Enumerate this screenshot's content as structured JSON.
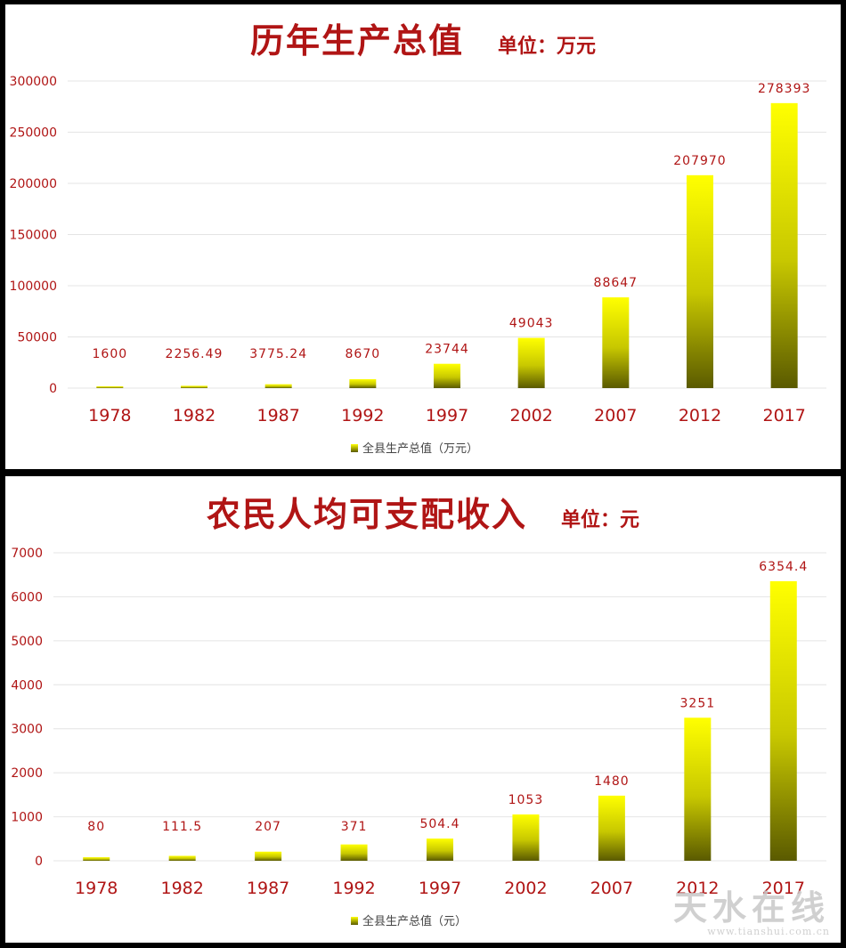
{
  "charts": [
    {
      "title": "历年生产总值",
      "unit_label": "单位：万元",
      "chart_data": {
        "type": "bar",
        "title": "历年生产总值",
        "categories": [
          "1978",
          "1982",
          "1987",
          "1992",
          "1997",
          "2002",
          "2007",
          "2012",
          "2017"
        ],
        "values": [
          1600,
          2256.49,
          3775.24,
          8670,
          23744,
          49043,
          88647,
          207970,
          278393
        ],
        "data_labels": [
          "1600",
          "2256.49",
          "3775.24",
          "8670",
          "23744",
          "49043",
          "88647",
          "207970",
          "278393"
        ],
        "series": [
          {
            "name": "全县生产总值（万元）",
            "values": [
              1600,
              2256.49,
              3775.24,
              8670,
              23744,
              49043,
              88647,
              207970,
              278393
            ]
          }
        ],
        "y_ticks": [
          "0",
          "50000",
          "100000",
          "150000",
          "200000",
          "250000",
          "300000"
        ],
        "ylim": [
          0,
          300000
        ],
        "grid": true,
        "legend": "bottom"
      }
    },
    {
      "title": "农民人均可支配收入",
      "unit_label": "单位：元",
      "chart_data": {
        "type": "bar",
        "title": "农民人均可支配收入",
        "categories": [
          "1978",
          "1982",
          "1987",
          "1992",
          "1997",
          "2002",
          "2007",
          "2012",
          "2017"
        ],
        "values": [
          80,
          111.5,
          207,
          371,
          504.4,
          1053,
          1480,
          3251,
          6354.4
        ],
        "data_labels": [
          "80",
          "111.5",
          "207",
          "371",
          "504.4",
          "1053",
          "1480",
          "3251",
          "6354.4"
        ],
        "series": [
          {
            "name": "全县生产总值（元）",
            "values": [
              80,
              111.5,
              207,
              371,
              504.4,
              1053,
              1480,
              3251,
              6354.4
            ]
          }
        ],
        "y_ticks": [
          "0",
          "1000",
          "2000",
          "3000",
          "4000",
          "5000",
          "6000",
          "7000"
        ],
        "ylim": [
          0,
          7000
        ],
        "grid": true,
        "legend": "bottom"
      }
    }
  ],
  "watermark": {
    "main": "天水在线",
    "sub": "www.tianshui.com.cn"
  },
  "colors": {
    "bar_top": "#ffff00",
    "bar_bottom": "#5a5a00",
    "axis_text": "#b01515",
    "grid": "#e4e4e4"
  }
}
